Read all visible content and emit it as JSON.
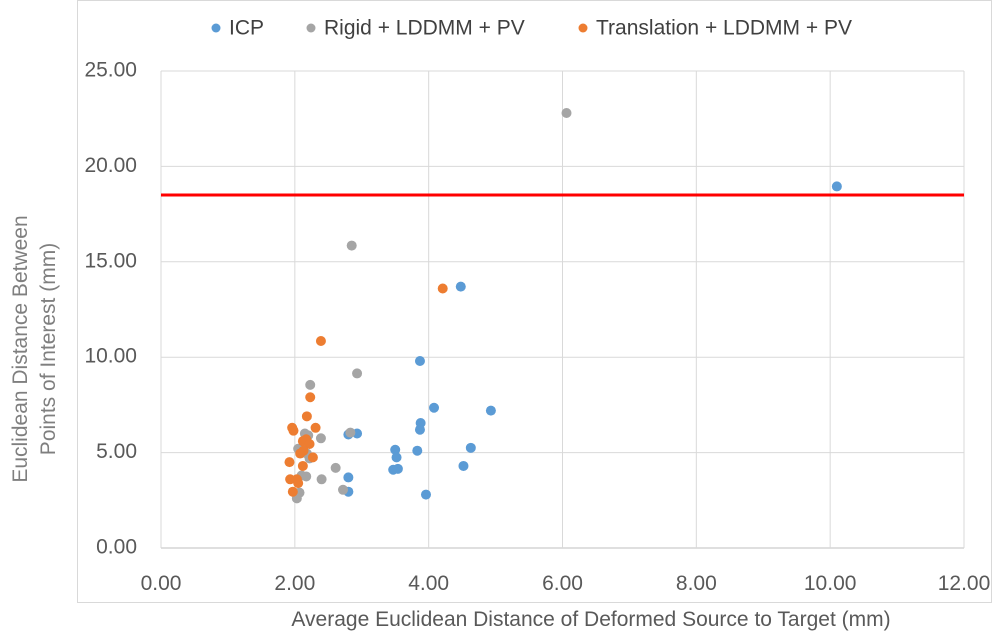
{
  "chart_data": {
    "type": "scatter",
    "title": "",
    "xlabel": "Average Euclidean Distance of Deformed Source to Target (mm)",
    "ylabel_lines": [
      "Euclidean Distance Between",
      "Points of Interest (mm)"
    ],
    "xlim": [
      0,
      12
    ],
    "ylim": [
      0,
      25
    ],
    "x_ticks": [
      "0.00",
      "2.00",
      "4.00",
      "6.00",
      "8.00",
      "10.00",
      "12.00"
    ],
    "y_ticks": [
      "0.00",
      "5.00",
      "10.00",
      "15.00",
      "20.00",
      "25.00"
    ],
    "grid": "vertical and horizontal major gridlines",
    "legend_position": "top",
    "reference_line": {
      "y": 18.5,
      "color": "#ff0000"
    },
    "series": [
      {
        "name": "ICP",
        "color": "#5b9bd5",
        "points": [
          [
            10.1,
            18.95
          ],
          [
            4.48,
            13.7
          ],
          [
            3.87,
            9.8
          ],
          [
            4.08,
            7.35
          ],
          [
            4.93,
            7.2
          ],
          [
            3.88,
            6.55
          ],
          [
            3.87,
            6.2
          ],
          [
            2.93,
            6.0
          ],
          [
            2.8,
            5.95
          ],
          [
            4.63,
            5.25
          ],
          [
            3.5,
            5.15
          ],
          [
            3.83,
            5.1
          ],
          [
            3.52,
            4.75
          ],
          [
            4.52,
            4.3
          ],
          [
            3.54,
            4.15
          ],
          [
            3.47,
            4.1
          ],
          [
            2.8,
            3.7
          ],
          [
            2.8,
            2.95
          ],
          [
            3.96,
            2.8
          ]
        ]
      },
      {
        "name": "Rigid + LDDMM + PV",
        "color": "#a5a5a5",
        "points": [
          [
            6.06,
            22.8
          ],
          [
            2.85,
            15.85
          ],
          [
            2.93,
            9.15
          ],
          [
            2.23,
            8.55
          ],
          [
            2.83,
            6.05
          ],
          [
            2.15,
            6.0
          ],
          [
            2.2,
            5.9
          ],
          [
            2.39,
            5.75
          ],
          [
            2.15,
            5.45
          ],
          [
            2.05,
            5.2
          ],
          [
            2.18,
            4.95
          ],
          [
            2.22,
            4.7
          ],
          [
            2.61,
            4.2
          ],
          [
            2.1,
            3.8
          ],
          [
            2.17,
            3.75
          ],
          [
            2.4,
            3.6
          ],
          [
            2.72,
            3.05
          ],
          [
            2.07,
            2.9
          ],
          [
            2.03,
            2.6
          ]
        ]
      },
      {
        "name": "Translation + LDDMM + PV",
        "color": "#ed7d31",
        "points": [
          [
            4.21,
            13.6
          ],
          [
            2.39,
            10.85
          ],
          [
            2.23,
            7.9
          ],
          [
            2.18,
            6.9
          ],
          [
            1.96,
            6.3
          ],
          [
            2.31,
            6.3
          ],
          [
            1.98,
            6.15
          ],
          [
            2.17,
            5.7
          ],
          [
            2.12,
            5.6
          ],
          [
            2.22,
            5.45
          ],
          [
            2.13,
            5.1
          ],
          [
            2.08,
            4.95
          ],
          [
            2.27,
            4.75
          ],
          [
            1.92,
            4.5
          ],
          [
            2.12,
            4.3
          ],
          [
            1.93,
            3.6
          ],
          [
            2.03,
            3.6
          ],
          [
            2.05,
            3.4
          ],
          [
            1.97,
            2.95
          ]
        ]
      }
    ]
  }
}
